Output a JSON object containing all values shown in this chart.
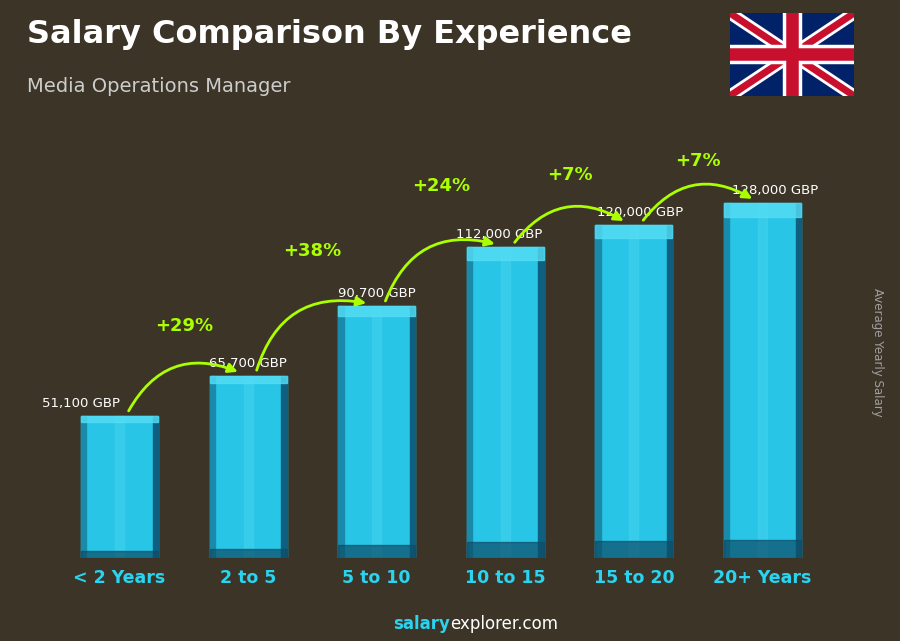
{
  "title": "Salary Comparison By Experience",
  "subtitle": "Media Operations Manager",
  "categories": [
    "< 2 Years",
    "2 to 5",
    "5 to 10",
    "10 to 15",
    "15 to 20",
    "20+ Years"
  ],
  "values": [
    51100,
    65700,
    90700,
    112000,
    120000,
    128000
  ],
  "labels": [
    "51,100 GBP",
    "65,700 GBP",
    "90,700 GBP",
    "112,000 GBP",
    "120,000 GBP",
    "128,000 GBP"
  ],
  "pct_changes": [
    "+29%",
    "+38%",
    "+24%",
    "+7%",
    "+7%"
  ],
  "title_color": "#ffffff",
  "subtitle_color": "#cccccc",
  "label_color": "#ffffff",
  "pct_color": "#aaff00",
  "cat_color": "#29d4f0",
  "footer_bold": "salary",
  "footer_regular": "explorer.com",
  "ylabel_text": "Average Yearly Salary",
  "bg_color": "#3d3428",
  "ylim": [
    0,
    155000
  ],
  "figsize": [
    9.0,
    6.41
  ],
  "dpi": 100,
  "bar_width": 0.6,
  "bar_main": "#29c5e6",
  "bar_left": "#1a8aaa",
  "bar_right": "#0f6080",
  "bar_top": "#55ddf5",
  "bar_bottom": "#0d4d68"
}
